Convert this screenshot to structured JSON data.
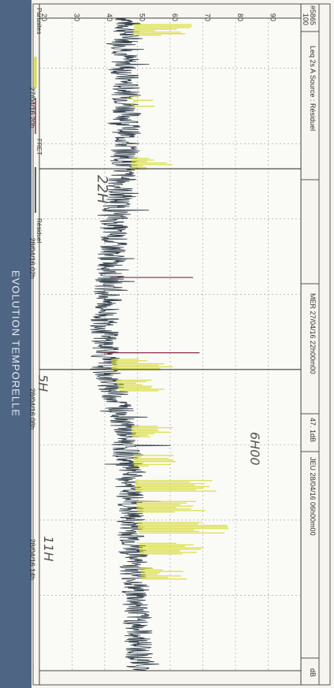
{
  "banner": {
    "title": "EVOLUTION TEMPORELLE"
  },
  "header": {
    "id": "#5865",
    "measure": "Leq 2s A  Source : Résiduel",
    "cursor1": "MER 27/04/16 22h00m00",
    "cursor_value": "47. 1dB",
    "cursor2": "JEU 28/04/16 06h00m00",
    "unit": "dB"
  },
  "legend": {
    "items": [
      {
        "label": "Parasites",
        "color": "#d8dc3c"
      },
      {
        "label": "FRET",
        "color": "#8b2b4a"
      },
      {
        "label": "Résiduel",
        "color": "#1e2c3a"
      }
    ]
  },
  "annotations": {
    "hand1": "22H",
    "hand2": "6H00",
    "hand3": "5H",
    "hand4": "11H"
  },
  "chart_data": {
    "type": "line",
    "ylabel": "dB",
    "ylim": [
      20,
      100
    ],
    "yticks": [
      20,
      30,
      40,
      50,
      60,
      70,
      80,
      90,
      100
    ],
    "xlim": [
      "27/04/16 16h",
      "28/04/16 18h"
    ],
    "xticks": [
      "27/04/16 20h",
      "28/04/16 02h",
      "28/04/16 08h",
      "28/04/16 14h"
    ],
    "cursors": [
      "27/04/16 22h00",
      "28/04/16 06h00"
    ],
    "series": [
      {
        "name": "Résiduel",
        "color": "#1e2c3a",
        "x_hours": [
          0,
          2,
          4,
          6,
          8,
          10,
          12,
          14,
          16,
          18,
          20,
          22,
          24,
          26
        ],
        "values": [
          47,
          46,
          47,
          46,
          43,
          42,
          40,
          40,
          46,
          47,
          48,
          49,
          50,
          51
        ]
      },
      {
        "name": "Parasites",
        "color": "#d8dc3c",
        "events": [
          {
            "time": "27/04/16 16h30",
            "peak": 67
          },
          {
            "time": "27/04/16 19h20",
            "peak": 58
          },
          {
            "time": "27/04/16 21h50",
            "peak": 63
          },
          {
            "time": "28/04/16 05h50",
            "peak": 62
          },
          {
            "time": "28/04/16 06h40",
            "peak": 61
          },
          {
            "time": "28/04/16 08h30",
            "peak": 64
          },
          {
            "time": "28/04/16 09h40",
            "peak": 62
          },
          {
            "time": "28/04/16 10h40",
            "peak": 75
          },
          {
            "time": "28/04/16 11h30",
            "peak": 71
          },
          {
            "time": "28/04/16 12h20",
            "peak": 78
          },
          {
            "time": "28/04/16 13h10",
            "peak": 71
          },
          {
            "time": "28/04/16 14h10",
            "peak": 66
          }
        ]
      },
      {
        "name": "FRET",
        "color": "#8b2b4a",
        "events": [
          {
            "time": "28/04/16 02h20",
            "peak": 67
          },
          {
            "time": "28/04/16 05h20",
            "peak": 69
          }
        ]
      }
    ]
  }
}
